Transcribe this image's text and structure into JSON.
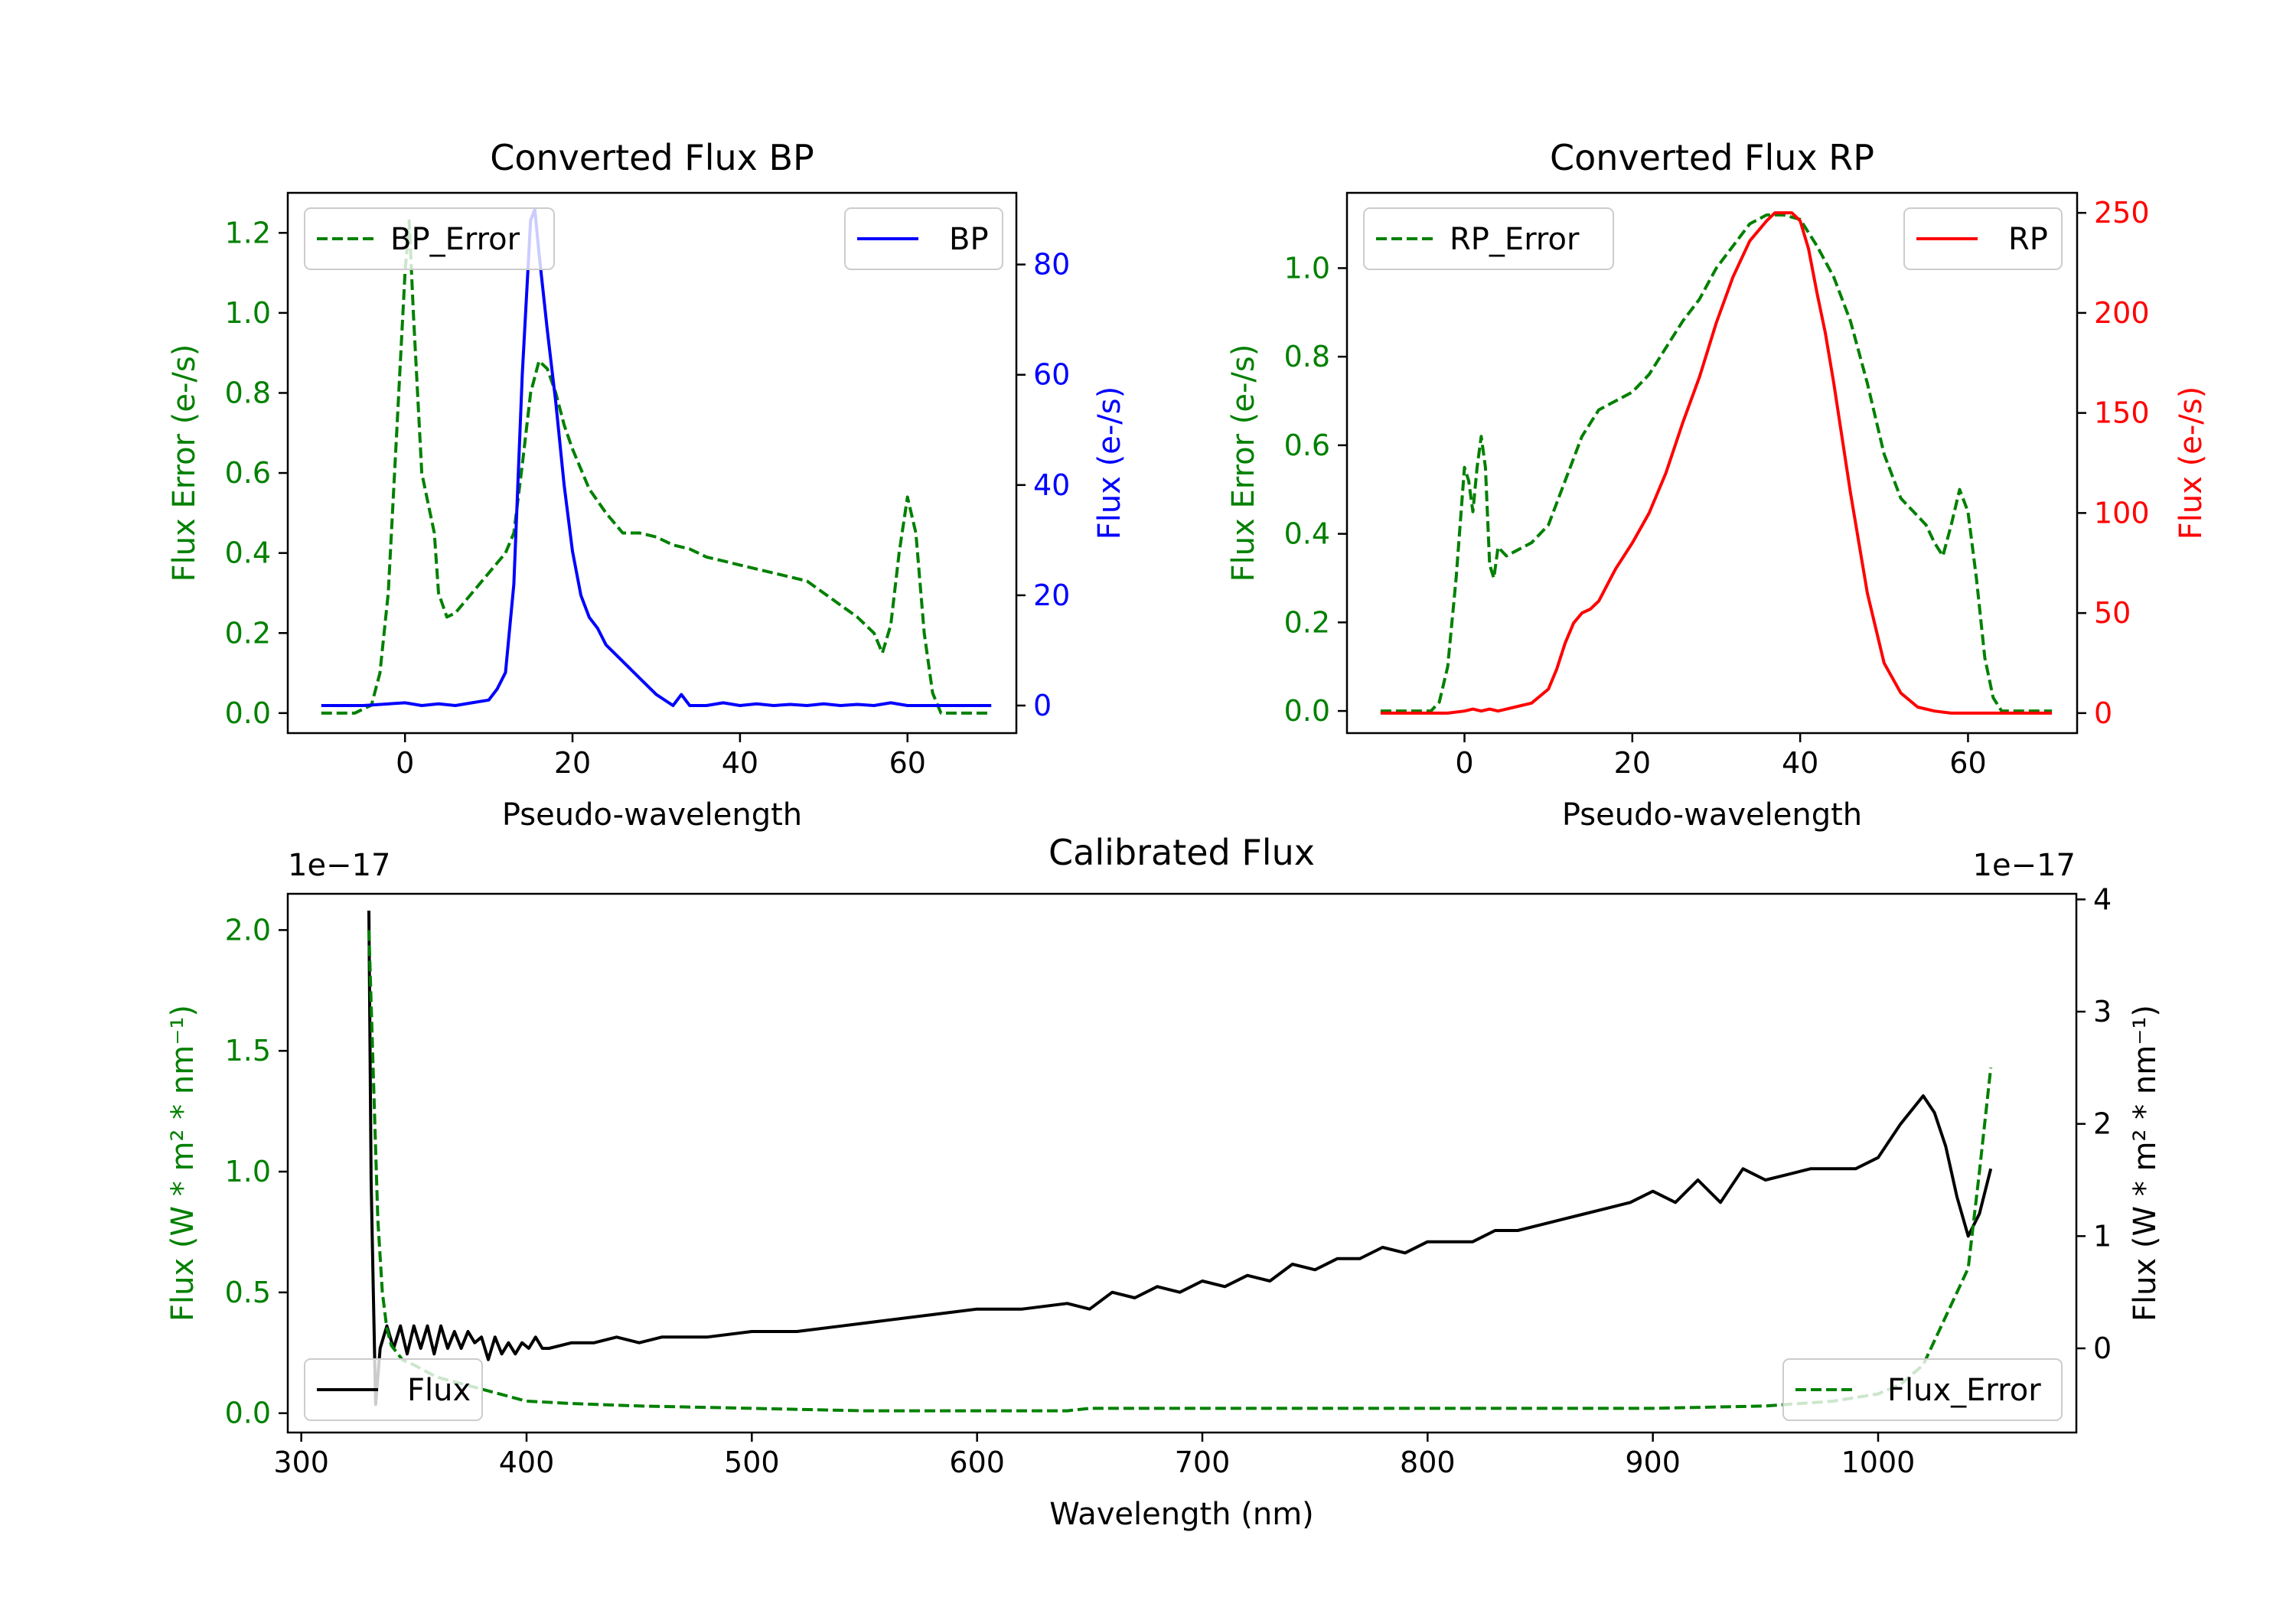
{
  "chart_data": [
    {
      "type": "line",
      "title": "Converted Flux BP",
      "xlabel": "Pseudo-wavelength",
      "ylabel_left": "Flux Error (e-/s)",
      "ylabel_right": "Flux (e-/s)",
      "xlim": [
        -14,
        73
      ],
      "ylim_left": [
        -0.05,
        1.3
      ],
      "ylim_right": [
        -5,
        93
      ],
      "xticks": [
        0,
        20,
        40,
        60
      ],
      "yticks_left": [
        0.0,
        0.2,
        0.4,
        0.6,
        0.8,
        1.0,
        1.2
      ],
      "yticks_right": [
        0,
        20,
        40,
        60,
        80
      ],
      "left_color": "#008000",
      "right_color": "#0000ff",
      "legend_left": "BP_Error",
      "legend_right": "BP",
      "series": [
        {
          "name": "BP_Error",
          "axis": "left",
          "style": "dashed",
          "color": "#008000",
          "x": [
            -10,
            -6,
            -4,
            -3,
            -2,
            -1,
            0,
            0.5,
            1,
            2,
            3,
            3.5,
            4,
            5,
            6,
            8,
            10,
            12,
            13,
            14,
            15,
            16,
            17,
            18,
            19,
            20,
            22,
            24,
            26,
            28,
            30,
            32,
            34,
            36,
            38,
            40,
            44,
            48,
            50,
            52,
            54,
            56,
            57,
            58,
            59,
            60,
            61,
            62,
            63,
            64,
            66,
            70
          ],
          "y": [
            0.0,
            0.0,
            0.02,
            0.1,
            0.3,
            0.7,
            1.1,
            1.23,
            1.0,
            0.6,
            0.5,
            0.45,
            0.3,
            0.24,
            0.25,
            0.3,
            0.35,
            0.4,
            0.45,
            0.62,
            0.8,
            0.88,
            0.86,
            0.8,
            0.72,
            0.66,
            0.56,
            0.5,
            0.45,
            0.45,
            0.44,
            0.42,
            0.41,
            0.39,
            0.38,
            0.37,
            0.35,
            0.33,
            0.3,
            0.27,
            0.24,
            0.2,
            0.15,
            0.22,
            0.4,
            0.54,
            0.45,
            0.2,
            0.05,
            0.0,
            0.0,
            0.0
          ]
        },
        {
          "name": "BP",
          "axis": "right",
          "style": "solid",
          "color": "#0000ff",
          "x": [
            -10,
            -5,
            0,
            2,
            4,
            6,
            8,
            10,
            11,
            12,
            13,
            14,
            15,
            15.5,
            16,
            17,
            18,
            19,
            20,
            21,
            22,
            23,
            24,
            26,
            28,
            30,
            32,
            33,
            34,
            36,
            38,
            40,
            42,
            44,
            46,
            48,
            50,
            52,
            54,
            56,
            58,
            60,
            62,
            64,
            66,
            70
          ],
          "y": [
            0,
            0,
            0.5,
            0,
            0.3,
            0,
            0.5,
            1,
            3,
            6,
            22,
            60,
            88,
            90,
            82,
            68,
            55,
            40,
            28,
            20,
            16,
            14,
            11,
            8,
            5,
            2,
            0,
            2,
            0,
            0,
            0.5,
            0,
            0.3,
            0,
            0.2,
            0,
            0.3,
            0,
            0.2,
            0,
            0.5,
            0,
            0,
            0,
            0,
            0
          ]
        }
      ]
    },
    {
      "type": "line",
      "title": "Converted Flux RP",
      "xlabel": "Pseudo-wavelength",
      "ylabel_left": "Flux Error (e-/s)",
      "ylabel_right": "Flux (e-/s)",
      "xlim": [
        -14,
        73
      ],
      "ylim_left": [
        -0.05,
        1.17
      ],
      "ylim_right": [
        -10,
        260
      ],
      "xticks": [
        0,
        20,
        40,
        60
      ],
      "yticks_left": [
        0.0,
        0.2,
        0.4,
        0.6,
        0.8,
        1.0
      ],
      "yticks_right": [
        0,
        50,
        100,
        150,
        200,
        250
      ],
      "left_color": "#008000",
      "right_color": "#ff0000",
      "legend_left": "RP_Error",
      "legend_right": "RP",
      "series": [
        {
          "name": "RP_Error",
          "axis": "left",
          "style": "dashed",
          "color": "#008000",
          "x": [
            -10,
            -4,
            -3,
            -2,
            -1,
            0,
            0.5,
            1,
            1.5,
            2,
            2.5,
            3,
            3.5,
            4,
            5,
            6,
            8,
            10,
            12,
            14,
            16,
            18,
            20,
            22,
            24,
            26,
            28,
            30,
            32,
            34,
            36,
            38,
            40,
            42,
            44,
            46,
            48,
            50,
            52,
            54,
            55,
            56,
            57,
            58,
            59,
            60,
            61,
            62,
            63,
            64,
            70
          ],
          "y": [
            0.0,
            0.0,
            0.02,
            0.1,
            0.3,
            0.55,
            0.52,
            0.45,
            0.55,
            0.62,
            0.55,
            0.33,
            0.3,
            0.37,
            0.35,
            0.36,
            0.38,
            0.42,
            0.52,
            0.62,
            0.68,
            0.7,
            0.72,
            0.76,
            0.82,
            0.88,
            0.93,
            1.0,
            1.05,
            1.1,
            1.12,
            1.12,
            1.11,
            1.05,
            0.98,
            0.88,
            0.74,
            0.58,
            0.48,
            0.44,
            0.42,
            0.38,
            0.35,
            0.42,
            0.5,
            0.45,
            0.3,
            0.12,
            0.03,
            0.0,
            0.0
          ]
        },
        {
          "name": "RP",
          "axis": "right",
          "style": "solid",
          "color": "#ff0000",
          "x": [
            -10,
            -4,
            -2,
            0,
            1,
            2,
            3,
            4,
            6,
            8,
            10,
            11,
            12,
            13,
            14,
            15,
            16,
            18,
            20,
            22,
            24,
            26,
            28,
            30,
            32,
            34,
            36,
            37,
            38,
            39,
            40,
            41,
            42,
            43,
            44,
            46,
            48,
            50,
            52,
            54,
            56,
            58,
            60,
            62,
            64,
            70
          ],
          "y": [
            0,
            0,
            0,
            1,
            2,
            1,
            2,
            1,
            3,
            5,
            12,
            22,
            35,
            45,
            50,
            52,
            56,
            72,
            85,
            100,
            120,
            145,
            168,
            195,
            218,
            236,
            246,
            250,
            250,
            250,
            246,
            232,
            210,
            190,
            165,
            110,
            60,
            25,
            10,
            3,
            1,
            0,
            0,
            0,
            0,
            0
          ]
        }
      ]
    },
    {
      "type": "line",
      "title": "Calibrated Flux",
      "xlabel": "Wavelength (nm)",
      "ylabel_left": "Flux (W * m² * nm⁻¹)",
      "ylabel_right": "Flux (W * m² * nm⁻¹)",
      "offset_left": "1e−17",
      "offset_right": "1e−17",
      "xlim": [
        294,
        1088
      ],
      "ylim_left": [
        -0.08,
        2.15
      ],
      "ylim_right": [
        -0.75,
        4.05
      ],
      "xticks": [
        300,
        400,
        500,
        600,
        700,
        800,
        900,
        1000
      ],
      "yticks_left": [
        0.0,
        0.5,
        1.0,
        1.5,
        2.0
      ],
      "yticks_right": [
        0,
        1,
        2,
        3,
        4
      ],
      "left_color": "#008000",
      "right_color": "#000000",
      "legend_left": "Flux",
      "legend_right": "Flux_Error",
      "series": [
        {
          "name": "Flux",
          "axis": "right",
          "style": "solid",
          "color": "#000000",
          "x": [
            330,
            331,
            332,
            333,
            335,
            338,
            341,
            344,
            347,
            350,
            353,
            356,
            359,
            362,
            365,
            368,
            371,
            374,
            377,
            380,
            383,
            386,
            389,
            392,
            395,
            398,
            401,
            404,
            407,
            410,
            420,
            430,
            440,
            450,
            460,
            480,
            500,
            520,
            540,
            560,
            580,
            600,
            620,
            640,
            650,
            660,
            670,
            680,
            690,
            700,
            710,
            720,
            730,
            740,
            750,
            760,
            770,
            780,
            790,
            800,
            810,
            820,
            830,
            840,
            850,
            860,
            870,
            880,
            890,
            900,
            910,
            920,
            930,
            940,
            950,
            960,
            970,
            980,
            990,
            1000,
            1010,
            1020,
            1025,
            1030,
            1035,
            1040,
            1045,
            1050
          ],
          "y": [
            3.9,
            1.5,
            0.5,
            -0.5,
            0.0,
            0.2,
            0.0,
            0.2,
            -0.05,
            0.2,
            0.0,
            0.2,
            -0.05,
            0.2,
            0.0,
            0.15,
            0.0,
            0.15,
            0.05,
            0.1,
            -0.1,
            0.1,
            -0.05,
            0.05,
            -0.05,
            0.05,
            0.0,
            0.1,
            0.0,
            0.0,
            0.05,
            0.05,
            0.1,
            0.05,
            0.1,
            0.1,
            0.15,
            0.15,
            0.2,
            0.25,
            0.3,
            0.35,
            0.35,
            0.4,
            0.35,
            0.5,
            0.45,
            0.55,
            0.5,
            0.6,
            0.55,
            0.65,
            0.6,
            0.75,
            0.7,
            0.8,
            0.8,
            0.9,
            0.85,
            0.95,
            0.95,
            0.95,
            1.05,
            1.05,
            1.1,
            1.15,
            1.2,
            1.25,
            1.3,
            1.4,
            1.3,
            1.5,
            1.3,
            1.6,
            1.5,
            1.55,
            1.6,
            1.6,
            1.6,
            1.7,
            2.0,
            2.25,
            2.1,
            1.8,
            1.35,
            1.0,
            1.2,
            1.6
          ]
        },
        {
          "name": "Flux_Error",
          "axis": "left",
          "style": "dashed",
          "color": "#008000",
          "x": [
            330,
            332,
            334,
            336,
            338,
            340,
            345,
            350,
            360,
            380,
            400,
            420,
            450,
            500,
            550,
            600,
            640,
            650,
            700,
            750,
            800,
            850,
            900,
            950,
            980,
            1000,
            1010,
            1020,
            1030,
            1040,
            1045,
            1050
          ],
          "y": [
            2.0,
            1.4,
            0.8,
            0.5,
            0.35,
            0.28,
            0.22,
            0.2,
            0.15,
            0.1,
            0.05,
            0.04,
            0.03,
            0.02,
            0.01,
            0.01,
            0.01,
            0.02,
            0.02,
            0.02,
            0.02,
            0.02,
            0.02,
            0.03,
            0.05,
            0.08,
            0.12,
            0.2,
            0.4,
            0.6,
            1.0,
            1.43
          ]
        }
      ]
    }
  ]
}
